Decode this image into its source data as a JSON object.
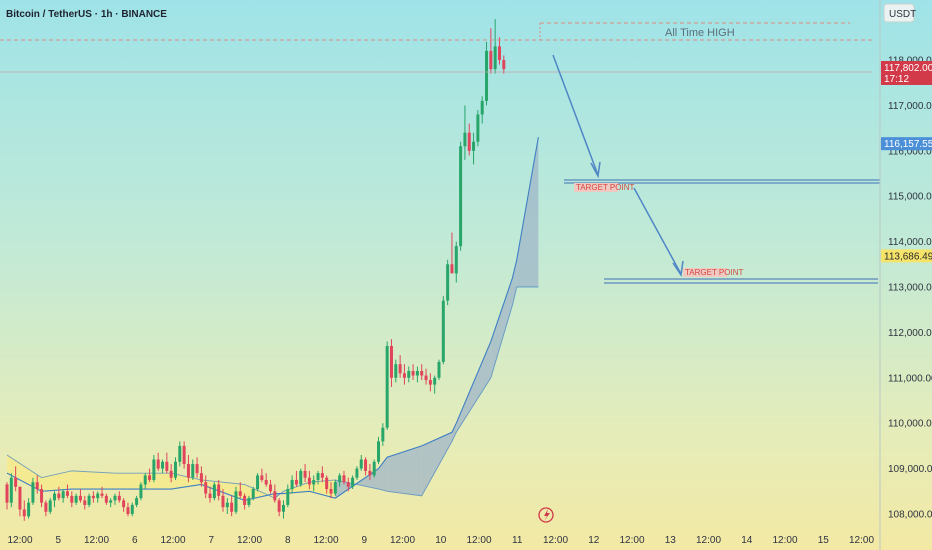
{
  "header": {
    "symbol": "Bitcoin / TetherUS · 1h · BINANCE",
    "currency": "USDT"
  },
  "chart_data": {
    "type": "candlestick",
    "x_tick_labels": [
      "12:00",
      "5",
      "12:00",
      "6",
      "12:00",
      "7",
      "12:00",
      "8",
      "12:00",
      "9",
      "12:00",
      "10",
      "12:00",
      "11",
      "12:00",
      "12",
      "12:00",
      "13",
      "12:00",
      "14",
      "12:00",
      "15",
      "12:00"
    ],
    "y_tick_labels": [
      "108,000.00",
      "109,000.00",
      "110,000.00",
      "111,000.00",
      "112,000.00",
      "113,000.00",
      "114,000.00",
      "115,000.00",
      "116,000.00",
      "117,000.00",
      "118,000.00"
    ],
    "ylim": [
      107800,
      119000
    ],
    "all_time_high": {
      "label": "All Time HIGH",
      "price": 118900
    },
    "targets": [
      {
        "label": "TARGET POINT",
        "price": 115350
      },
      {
        "label": "TARGET POINT",
        "price": 113120
      }
    ],
    "price_tags": [
      {
        "value": "117,802.00",
        "sub": "17:12",
        "color": "#d23a4a",
        "price": 117802
      },
      {
        "value": "116,157.55",
        "sub": "",
        "color": "#4a8fd8",
        "price": 116157
      },
      {
        "value": "113,686.49",
        "sub": "",
        "color": "#f5e36a",
        "price": 113686
      }
    ],
    "colors": {
      "up": "#28a66a",
      "down": "#e0455b",
      "cloud_bull": "#9fb6c8",
      "cloud_bear": "#f5ea8c",
      "arrow": "#4f86c6",
      "ath_line": "#e08a7e"
    },
    "candles_series": [
      [
        108650,
        108700,
        108100,
        108250
      ],
      [
        108250,
        108900,
        108150,
        108800
      ],
      [
        108800,
        109050,
        108500,
        108600
      ],
      [
        108600,
        108600,
        107950,
        108100
      ],
      [
        108100,
        108300,
        107850,
        107950
      ],
      [
        107950,
        108350,
        107900,
        108250
      ],
      [
        108250,
        108800,
        108200,
        108700
      ],
      [
        108700,
        108850,
        108450,
        108550
      ],
      [
        108550,
        108650,
        108150,
        108250
      ],
      [
        108250,
        108300,
        107950,
        108050
      ],
      [
        108050,
        108350,
        108000,
        108300
      ],
      [
        108300,
        108500,
        108150,
        108450
      ],
      [
        108450,
        108600,
        108300,
        108350
      ],
      [
        108350,
        108550,
        108250,
        108500
      ],
      [
        108500,
        108650,
        108350,
        108400
      ],
      [
        108400,
        108500,
        108150,
        108250
      ],
      [
        108250,
        108450,
        108200,
        108400
      ],
      [
        108400,
        108550,
        108250,
        108300
      ],
      [
        108300,
        108400,
        108100,
        108200
      ],
      [
        108200,
        108450,
        108150,
        108400
      ],
      [
        108400,
        108500,
        108250,
        108350
      ],
      [
        108350,
        108500,
        108250,
        108450
      ],
      [
        108450,
        108600,
        108350,
        108400
      ],
      [
        108400,
        108450,
        108200,
        108250
      ],
      [
        108250,
        108350,
        108150,
        108300
      ],
      [
        108300,
        108450,
        108200,
        108400
      ],
      [
        108400,
        108500,
        108250,
        108300
      ],
      [
        108300,
        108350,
        108050,
        108150
      ],
      [
        108150,
        108250,
        107950,
        108000
      ],
      [
        108000,
        108250,
        107950,
        108200
      ],
      [
        108200,
        108400,
        108150,
        108350
      ],
      [
        108350,
        108700,
        108300,
        108650
      ],
      [
        108650,
        108900,
        108550,
        108850
      ],
      [
        108850,
        109000,
        108700,
        108750
      ],
      [
        108750,
        109300,
        108700,
        109200
      ],
      [
        109200,
        109350,
        108950,
        109000
      ],
      [
        109000,
        109200,
        108900,
        109150
      ],
      [
        109150,
        109350,
        108900,
        108950
      ],
      [
        108950,
        109100,
        108700,
        108800
      ],
      [
        108800,
        109250,
        108750,
        109150
      ],
      [
        109150,
        109600,
        109050,
        109500
      ],
      [
        109500,
        109600,
        109000,
        109100
      ],
      [
        109100,
        109300,
        108700,
        108800
      ],
      [
        108800,
        109200,
        108750,
        109100
      ],
      [
        109100,
        109250,
        108800,
        108900
      ],
      [
        108900,
        109050,
        108600,
        108700
      ],
      [
        108700,
        108850,
        108350,
        108450
      ],
      [
        108450,
        108600,
        108250,
        108350
      ],
      [
        108350,
        108700,
        108300,
        108650
      ],
      [
        108650,
        108750,
        108300,
        108400
      ],
      [
        108400,
        108550,
        108050,
        108150
      ],
      [
        108150,
        108350,
        108000,
        108250
      ],
      [
        108250,
        108400,
        107950,
        108050
      ],
      [
        108050,
        108600,
        108000,
        108500
      ],
      [
        108500,
        108700,
        108350,
        108400
      ],
      [
        108400,
        108450,
        108100,
        108200
      ],
      [
        108200,
        108400,
        108150,
        108350
      ],
      [
        108350,
        108600,
        108300,
        108550
      ],
      [
        108550,
        108900,
        108500,
        108850
      ],
      [
        108850,
        109000,
        108700,
        108750
      ],
      [
        108750,
        108900,
        108600,
        108650
      ],
      [
        108650,
        108750,
        108450,
        108500
      ],
      [
        108500,
        108650,
        108250,
        108300
      ],
      [
        108300,
        108350,
        107950,
        108050
      ],
      [
        108050,
        108300,
        107900,
        108200
      ],
      [
        108200,
        108650,
        108150,
        108550
      ],
      [
        108550,
        108850,
        108450,
        108750
      ],
      [
        108750,
        108950,
        108600,
        108650
      ],
      [
        108650,
        109000,
        108600,
        108950
      ],
      [
        108950,
        109100,
        108700,
        108800
      ],
      [
        108800,
        108950,
        108550,
        108650
      ],
      [
        108650,
        108850,
        108500,
        108750
      ],
      [
        108750,
        108950,
        108650,
        108900
      ],
      [
        108900,
        109050,
        108700,
        108800
      ],
      [
        108800,
        108850,
        108450,
        108550
      ],
      [
        108550,
        108700,
        108350,
        108450
      ],
      [
        108450,
        108750,
        108400,
        108700
      ],
      [
        108700,
        108900,
        108600,
        108850
      ],
      [
        108850,
        108950,
        108650,
        108700
      ],
      [
        108700,
        108800,
        108500,
        108600
      ],
      [
        108600,
        108850,
        108550,
        108800
      ],
      [
        108800,
        109050,
        108750,
        109000
      ],
      [
        109000,
        109300,
        108950,
        109200
      ],
      [
        109200,
        109250,
        108850,
        108950
      ],
      [
        108950,
        109100,
        108750,
        108850
      ],
      [
        108850,
        109200,
        108800,
        109150
      ],
      [
        109150,
        109700,
        109100,
        109600
      ],
      [
        109600,
        110000,
        109500,
        109900
      ],
      [
        109900,
        111800,
        109850,
        111700
      ],
      [
        111700,
        111850,
        110800,
        111000
      ],
      [
        111000,
        111400,
        110900,
        111300
      ],
      [
        111300,
        111500,
        111000,
        111100
      ],
      [
        111100,
        111300,
        110850,
        111000
      ],
      [
        111000,
        111250,
        110900,
        111150
      ],
      [
        111150,
        111300,
        110950,
        111050
      ],
      [
        111050,
        111250,
        110900,
        111150
      ],
      [
        111150,
        111300,
        110950,
        111050
      ],
      [
        111050,
        111200,
        110850,
        110950
      ],
      [
        110950,
        111100,
        110700,
        110850
      ],
      [
        110850,
        111050,
        110650,
        111000
      ],
      [
        111000,
        111400,
        110950,
        111350
      ],
      [
        111350,
        112800,
        111300,
        112700
      ],
      [
        112700,
        113600,
        112600,
        113500
      ],
      [
        113500,
        114200,
        113400,
        113300
      ],
      [
        113300,
        114000,
        113100,
        113900
      ],
      [
        113900,
        116200,
        113800,
        116100
      ],
      [
        116100,
        117000,
        115800,
        116400
      ],
      [
        116400,
        116600,
        115900,
        116000
      ],
      [
        116000,
        116400,
        115700,
        116200
      ],
      [
        116200,
        116900,
        116100,
        116800
      ],
      [
        116800,
        117200,
        116600,
        117100
      ],
      [
        117100,
        118400,
        117000,
        118200
      ],
      [
        118200,
        118700,
        117700,
        117800
      ],
      [
        117800,
        118900,
        117700,
        118300
      ],
      [
        118300,
        118500,
        117900,
        118000
      ],
      [
        118000,
        118100,
        117700,
        117802
      ]
    ],
    "cloud_series": {
      "x": [
        0,
        8,
        15,
        25,
        38,
        45,
        55,
        62,
        64,
        70,
        76,
        86,
        88,
        96,
        103,
        104,
        112,
        117,
        118,
        123
      ],
      "a": [
        108900,
        108500,
        108550,
        108550,
        108550,
        108650,
        108300,
        108450,
        108450,
        108500,
        108350,
        109000,
        109250,
        109500,
        109800,
        110000,
        111800,
        113200,
        113600,
        116300
      ],
      "b": [
        109300,
        108800,
        108950,
        108900,
        108900,
        108750,
        108650,
        108350,
        108500,
        108700,
        108750,
        108550,
        108500,
        108400,
        109600,
        109800,
        111000,
        112600,
        113000,
        113000
      ]
    }
  }
}
